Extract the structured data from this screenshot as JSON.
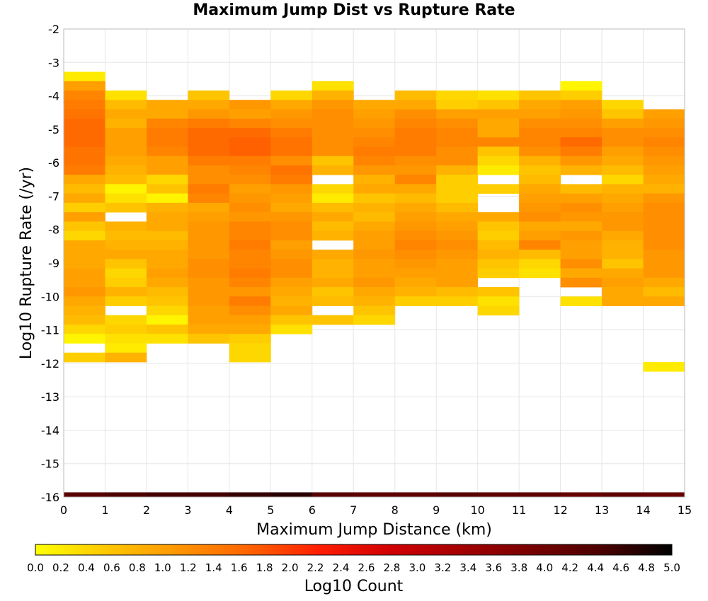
{
  "chart_data": {
    "type": "heatmap",
    "title": "Maximum Jump Dist vs Rupture Rate",
    "xlabel": "Maximum Jump Distance (km)",
    "ylabel": "Log10 Rupture Rate (/yr)",
    "xlim": [
      0,
      15
    ],
    "ylim": [
      -16,
      -2
    ],
    "x_ticks": [
      0,
      1,
      2,
      3,
      4,
      5,
      6,
      7,
      8,
      9,
      10,
      11,
      12,
      13,
      14,
      15
    ],
    "y_ticks": [
      -2,
      -3,
      -4,
      -5,
      -6,
      -7,
      -8,
      -9,
      -10,
      -11,
      -12,
      -13,
      -14,
      -15,
      -16
    ],
    "grid": true,
    "x_bin_width": 1,
    "y_bin_height": 0.28,
    "colorscale": {
      "label": "Log10 Count",
      "min": 0.0,
      "max": 5.0,
      "ticks": [
        "0.0",
        "0.2",
        "0.4",
        "0.6",
        "0.8",
        "1.0",
        "1.2",
        "1.4",
        "1.6",
        "1.8",
        "2.0",
        "2.2",
        "2.4",
        "2.6",
        "2.8",
        "3.0",
        "3.2",
        "3.4",
        "3.6",
        "3.8",
        "4.0",
        "4.2",
        "4.4",
        "4.6",
        "4.8",
        "5.0"
      ],
      "stops": [
        "#ffff00",
        "#ffc800",
        "#ff9600",
        "#ff6400",
        "#ff1e00",
        "#d20000",
        "#a50000",
        "#780000",
        "#4b0000",
        "#000000"
      ]
    },
    "columns": [
      {
        "x_start": 0,
        "y_top": -3.28,
        "values": [
          0.2,
          1.0,
          1.3,
          1.4,
          1.5,
          1.6,
          1.6,
          1.6,
          1.5,
          1.5,
          1.4,
          0.9,
          0.7,
          0.9,
          0.5,
          1.0,
          0.6,
          0.4,
          0.9,
          0.9,
          0.9,
          1.0,
          1.0,
          1.1,
          0.9,
          0.8,
          0.7,
          0.4,
          0.1,
          null,
          0.5
        ]
      },
      {
        "x_start": 1,
        "y_top": -3.84,
        "values": [
          0.3,
          0.7,
          0.9,
          0.8,
          1.0,
          1.0,
          1.0,
          0.9,
          0.8,
          0.7,
          0.1,
          0.3,
          0.6,
          null,
          0.8,
          0.7,
          0.8,
          0.9,
          0.6,
          0.4,
          0.5,
          0.8,
          0.5,
          null,
          0.4,
          0.5,
          0.3,
          0.2,
          0.8
        ]
      },
      {
        "x_start": 2,
        "y_top": -4.12,
        "values": [
          0.9,
          0.9,
          1.3,
          1.4,
          1.4,
          1.3,
          1.0,
          1.0,
          0.4,
          0.6,
          0.1,
          0.8,
          0.9,
          0.9,
          0.7,
          0.8,
          0.9,
          0.9,
          1.0,
          0.9,
          0.7,
          0.6,
          0.4,
          0.1,
          0.6,
          0.3
        ]
      },
      {
        "x_start": 3,
        "y_top": -3.84,
        "values": [
          0.6,
          0.9,
          1.1,
          1.4,
          1.6,
          1.6,
          1.6,
          1.4,
          1.2,
          1.2,
          1.4,
          1.3,
          0.9,
          1.0,
          1.1,
          1.1,
          1.1,
          1.1,
          1.2,
          1.2,
          1.1,
          1.1,
          1.1,
          1.0,
          1.0,
          0.9,
          0.6
        ]
      },
      {
        "x_start": 4,
        "y_top": -4.12,
        "values": [
          1.1,
          1.0,
          1.3,
          1.6,
          1.7,
          1.7,
          1.4,
          1.3,
          1.2,
          1.0,
          1.1,
          1.2,
          1.1,
          1.3,
          1.3,
          1.4,
          1.3,
          1.3,
          1.4,
          1.3,
          1.1,
          1.4,
          1.2,
          1.0,
          0.9,
          0.5,
          0.4,
          0.4
        ]
      },
      {
        "x_start": 5,
        "y_top": -3.84,
        "values": [
          0.4,
          0.9,
          1.1,
          1.2,
          1.4,
          1.5,
          1.5,
          1.2,
          1.5,
          1.4,
          1.1,
          1.0,
          0.9,
          1.1,
          1.2,
          1.2,
          1.0,
          1.1,
          1.2,
          1.2,
          1.0,
          0.9,
          0.8,
          0.9,
          0.6,
          0.3
        ]
      },
      {
        "x_start": 6,
        "y_top": -3.56,
        "values": [
          0.3,
          0.8,
          1.1,
          1.2,
          1.2,
          1.2,
          1.2,
          1.2,
          0.6,
          0.8,
          null,
          0.4,
          0.2,
          0.7,
          0.9,
          0.7,
          0.8,
          null,
          0.9,
          0.8,
          0.8,
          0.9,
          0.6,
          0.7,
          null,
          0.6
        ]
      },
      {
        "x_start": 7,
        "y_top": -4.12,
        "values": [
          0.9,
          1.0,
          1.1,
          1.2,
          1.3,
          1.4,
          1.3,
          1.1,
          0.8,
          0.9,
          0.6,
          0.8,
          0.7,
          0.9,
          1.0,
          1.0,
          1.1,
          1.0,
          1.0,
          1.1,
          0.9,
          0.8,
          0.6,
          0.4
        ]
      },
      {
        "x_start": 8,
        "y_top": -3.84,
        "values": [
          0.7,
          0.9,
          1.2,
          1.3,
          1.4,
          1.4,
          1.4,
          1.2,
          1.1,
          1.3,
          0.9,
          0.7,
          0.9,
          1.0,
          1.1,
          1.2,
          1.3,
          1.2,
          1.1,
          1.0,
          0.9,
          0.8,
          0.5
        ]
      },
      {
        "x_start": 9,
        "y_top": -3.84,
        "values": [
          0.4,
          0.5,
          1.0,
          1.2,
          1.3,
          1.3,
          1.2,
          1.2,
          0.8,
          0.5,
          0.5,
          0.5,
          0.7,
          0.9,
          1.0,
          1.1,
          1.2,
          1.1,
          1.0,
          1.0,
          1.0,
          0.7,
          0.5
        ]
      },
      {
        "x_start": 10,
        "y_top": -3.84,
        "values": [
          0.3,
          0.6,
          1.0,
          0.9,
          0.9,
          1.3,
          0.6,
          0.4,
          0.2,
          null,
          0.5,
          null,
          null,
          0.9,
          0.6,
          0.5,
          0.7,
          0.8,
          0.6,
          0.5,
          null,
          0.6,
          0.3,
          0.4
        ]
      },
      {
        "x_start": 11,
        "y_top": -3.84,
        "values": [
          0.6,
          0.9,
          1.0,
          1.2,
          1.3,
          1.3,
          1.2,
          0.8,
          0.6,
          0.7,
          0.9,
          1.0,
          1.1,
          1.2,
          0.9,
          1.0,
          1.3,
          0.7,
          0.4,
          0.3
        ]
      },
      {
        "x_start": 12,
        "y_top": -3.56,
        "values": [
          0.1,
          0.5,
          1.0,
          1.1,
          1.2,
          1.3,
          1.6,
          1.4,
          1.1,
          0.8,
          null,
          0.7,
          1.0,
          1.2,
          1.1,
          0.9,
          1.1,
          1.0,
          1.0,
          1.2,
          0.9,
          1.2,
          null,
          0.3
        ]
      },
      {
        "x_start": 13,
        "y_top": -4.12,
        "values": [
          0.4,
          0.6,
          1.0,
          1.2,
          1.2,
          1.0,
          0.9,
          0.7,
          0.4,
          0.8,
          0.9,
          1.0,
          1.1,
          1.1,
          0.9,
          0.8,
          0.8,
          0.6,
          0.9,
          1.0,
          0.9,
          0.9
        ]
      },
      {
        "x_start": 14,
        "y_top": -4.4,
        "values": [
          1.0,
          1.1,
          1.2,
          1.3,
          1.2,
          1.1,
          1.0,
          0.9,
          0.8,
          1.1,
          1.2,
          1.2,
          1.2,
          1.2,
          1.2,
          1.1,
          1.1,
          1.1,
          0.9,
          0.7,
          0.9,
          null,
          null,
          null,
          null,
          null,
          null,
          0.2
        ]
      }
    ],
    "bottom_strip": {
      "y_bottom": -16,
      "y_top": -15.86,
      "values": [
        4.3,
        4.4,
        4.5,
        4.5,
        4.6,
        4.7,
        4.3,
        4.2,
        4.2,
        4.3,
        4.2,
        4.2,
        4.1,
        4.2,
        4.1
      ]
    }
  }
}
